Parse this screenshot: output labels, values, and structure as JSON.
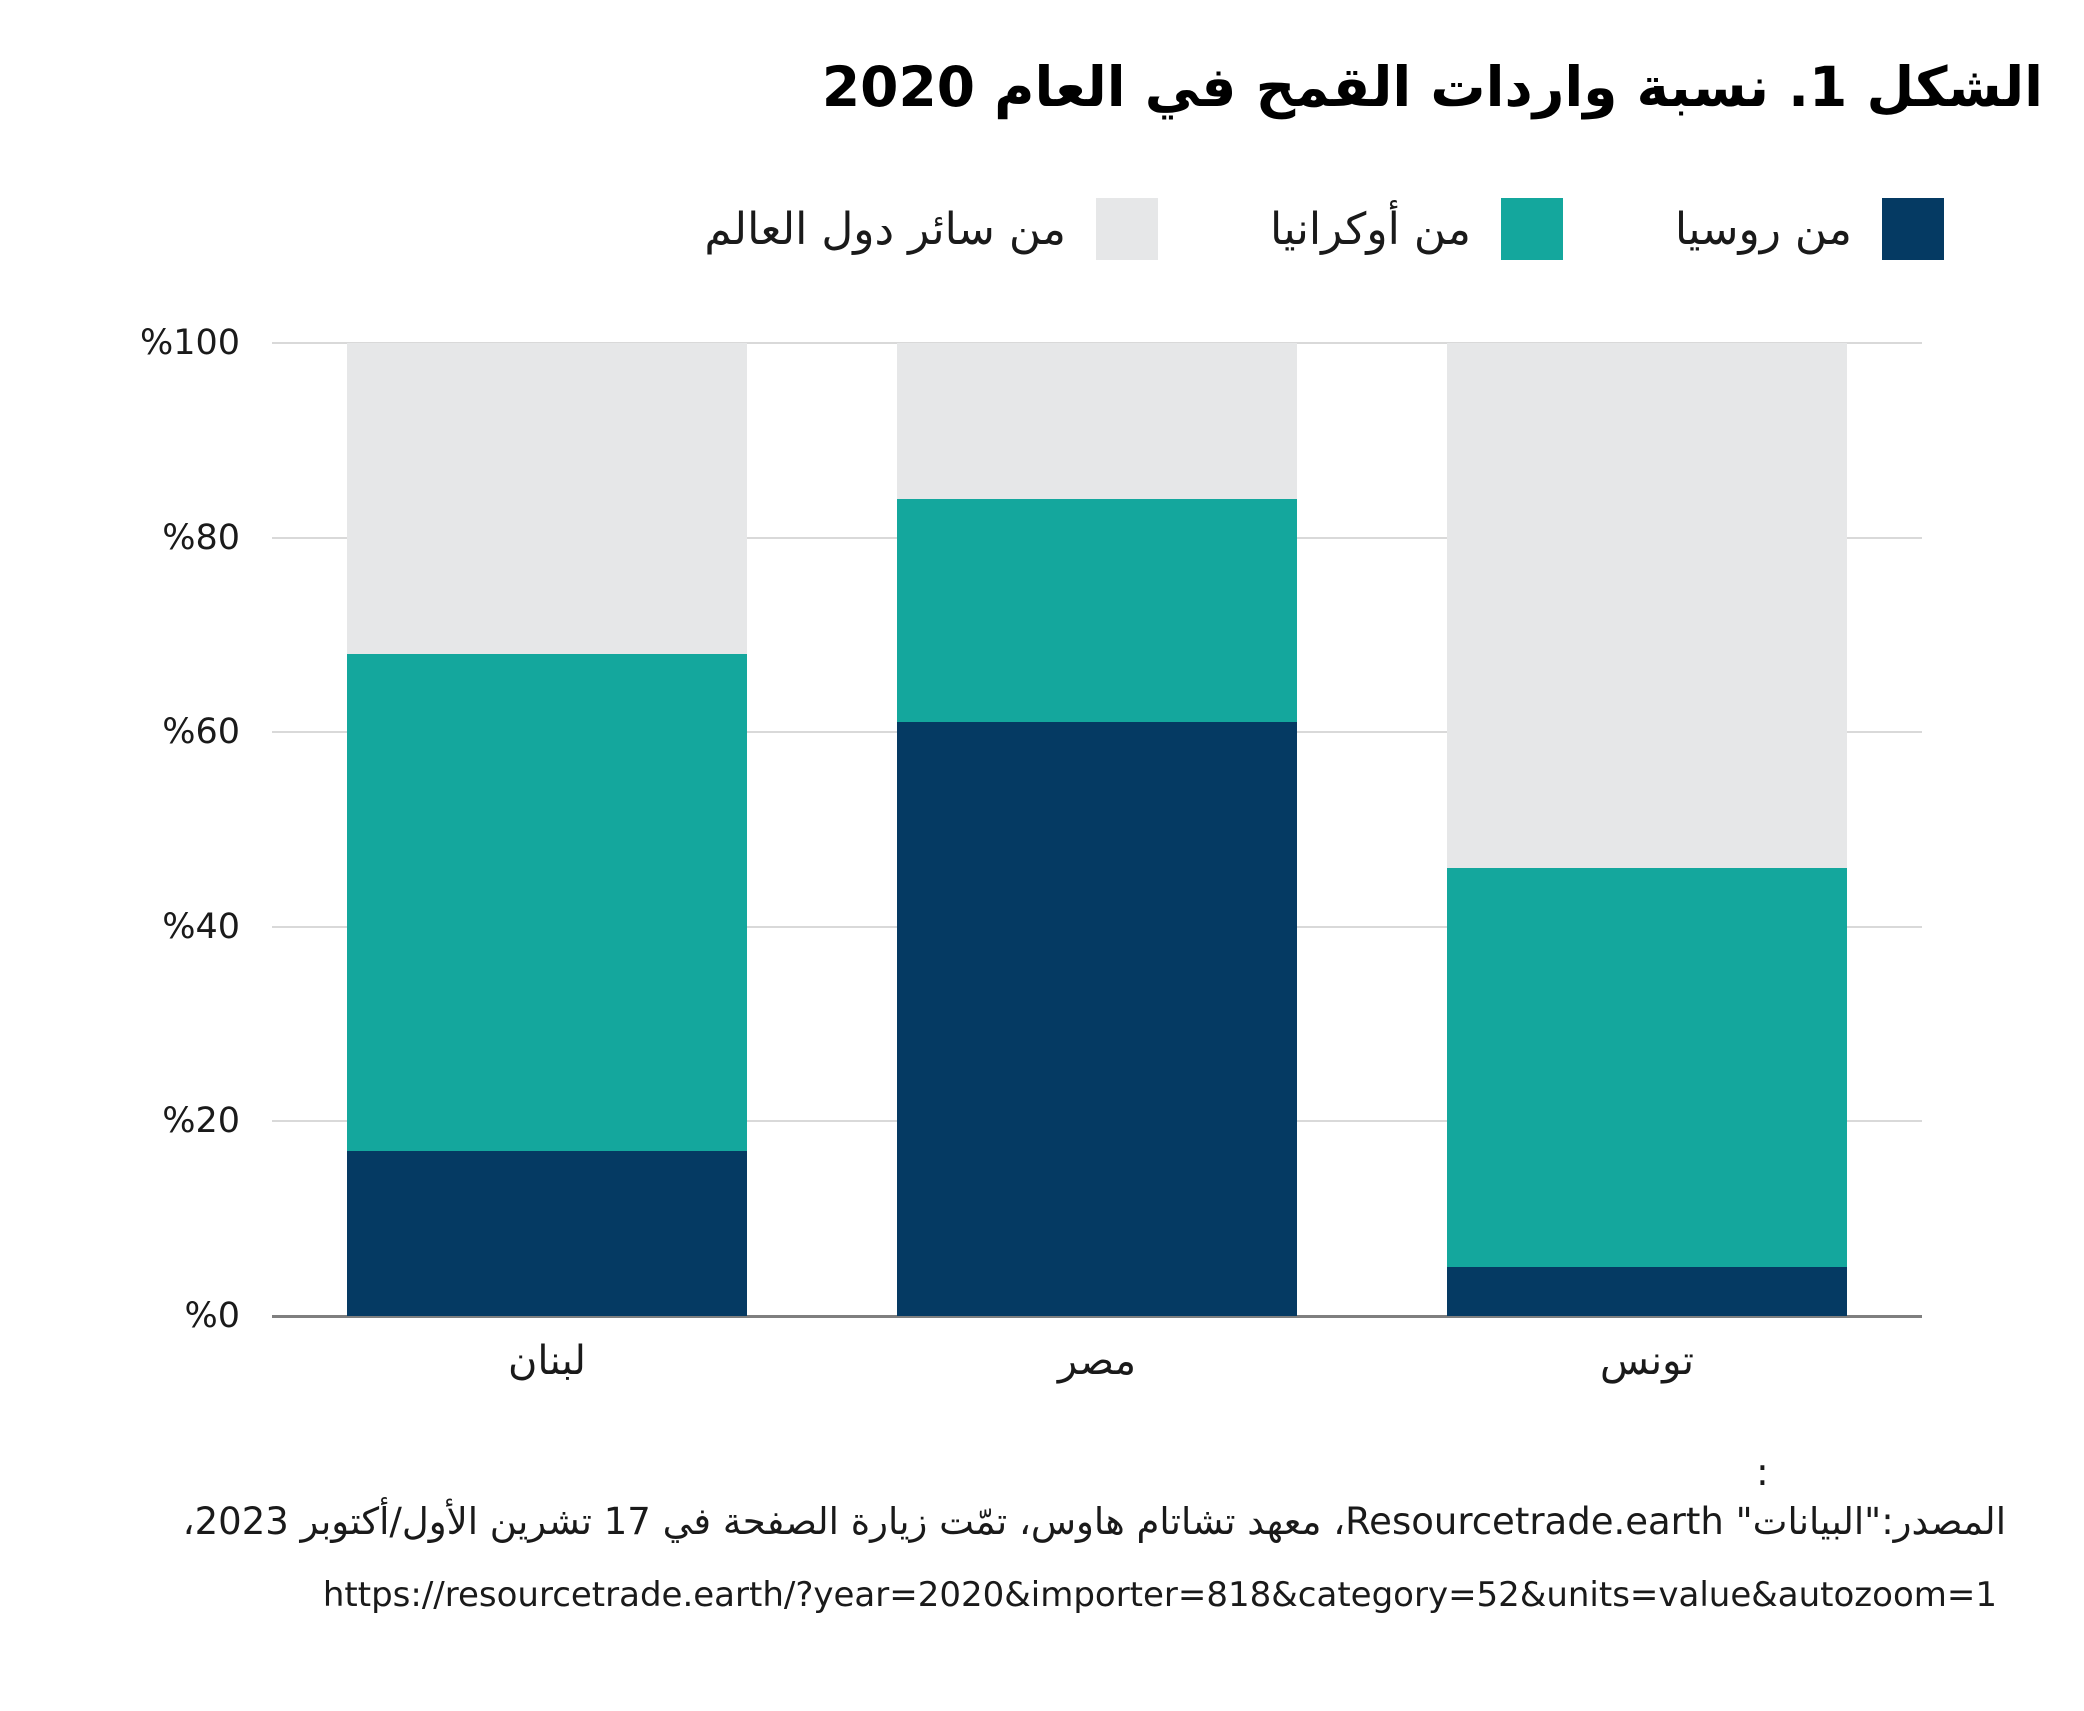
{
  "chart_data": {
    "type": "bar",
    "stacked": true,
    "title": "الشكل 1. نسبة واردات القمح في العام 2020",
    "categories": [
      "لبنان",
      "مصر",
      "تونس"
    ],
    "series": [
      {
        "name": "من روسيا",
        "color": "#053A63",
        "values": [
          17,
          61,
          5
        ]
      },
      {
        "name": "من أوكرانيا",
        "color": "#14A79D",
        "values": [
          51,
          23,
          41
        ]
      },
      {
        "name": "من سائر دول العالم",
        "color": "#E6E7E8",
        "values": [
          32,
          16,
          54
        ]
      }
    ],
    "y_ticks": [
      {
        "label": "%0",
        "value": 0
      },
      {
        "label": "%20",
        "value": 20
      },
      {
        "label": "%40",
        "value": 40
      },
      {
        "label": "%60",
        "value": 60
      },
      {
        "label": "%80",
        "value": 80
      },
      {
        "label": "%100",
        "value": 100
      }
    ],
    "ylim": [
      0,
      100
    ],
    "grid": true,
    "legend_position": "top-right",
    "colors": {
      "gridline": "#D9D9D9",
      "axis_line": "#7F7F7F",
      "text": "#1A1A1A"
    }
  },
  "footnote": {
    "stray_colon": ":",
    "line1": "المصدر:\"البيانات\" Resourcetrade.earth، معهد تشاتام هاوس، تمّت زيارة الصفحة في 17 تشرين الأول/أكتوبر 2023،",
    "line2": "https://resourcetrade.earth/?year=2020&importer=818&category=52&units=value&autozoom=1"
  }
}
